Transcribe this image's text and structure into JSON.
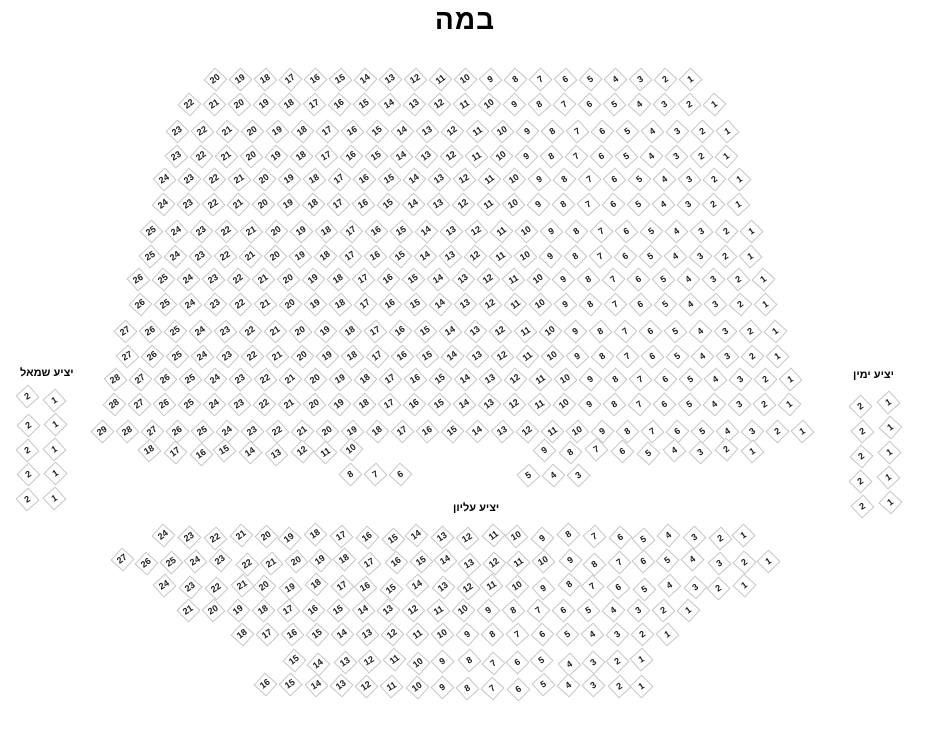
{
  "title": "במה",
  "colors": {
    "background": "#ffffff",
    "seat_fill": "#ffffff",
    "seat_border": "#c6c6c6",
    "seat_number_text": "#1c1c1c",
    "label_text": "#000000"
  },
  "sections": {
    "main": {
      "rows": [
        [
          {
            "from": 20,
            "to": 1
          }
        ],
        [
          {
            "from": 22,
            "to": 1
          }
        ],
        [
          {
            "from": 23,
            "to": 1
          }
        ],
        [
          {
            "from": 23,
            "to": 1
          }
        ],
        [
          {
            "from": 24,
            "to": 1
          }
        ],
        [
          {
            "from": 24,
            "to": 1
          }
        ],
        [
          {
            "from": 25,
            "to": 1
          }
        ],
        [
          {
            "from": 25,
            "to": 1
          }
        ],
        [
          {
            "from": 26,
            "to": 1
          }
        ],
        [
          {
            "from": 26,
            "to": 1
          }
        ],
        [
          {
            "from": 27,
            "to": 1
          }
        ],
        [
          {
            "from": 27,
            "to": 1
          }
        ],
        [
          {
            "from": 28,
            "to": 1
          }
        ],
        [
          {
            "from": 28,
            "to": 1
          }
        ],
        [
          {
            "from": 29,
            "to": 1
          }
        ],
        [
          {
            "from": 18,
            "to": 10
          },
          {
            "from": 9,
            "to": 1
          }
        ],
        [
          {
            "from": 8,
            "to": 6
          },
          {
            "from": 5,
            "to": 3
          }
        ]
      ]
    },
    "left_balcony": {
      "label": "יציע שמאל",
      "rows": [
        [
          {
            "from": 2,
            "to": 1
          }
        ],
        [
          {
            "from": 2,
            "to": 1
          }
        ],
        [
          {
            "from": 2,
            "to": 1
          }
        ],
        [
          {
            "from": 2,
            "to": 1
          }
        ],
        [
          {
            "from": 2,
            "to": 1
          }
        ]
      ]
    },
    "right_balcony": {
      "label": "יציע ימין",
      "rows": [
        [
          {
            "from": 2,
            "to": 1
          }
        ],
        [
          {
            "from": 2,
            "to": 1
          }
        ],
        [
          {
            "from": 2,
            "to": 1
          }
        ],
        [
          {
            "from": 2,
            "to": 1
          }
        ],
        [
          {
            "from": 2,
            "to": 1
          }
        ]
      ]
    },
    "upper_balcony": {
      "label": "יציע עליון",
      "rows": [
        [
          {
            "from": 24,
            "to": 1
          }
        ],
        [
          {
            "from": 27,
            "to": 1
          }
        ],
        [
          {
            "from": 24,
            "to": 1
          }
        ],
        [
          {
            "from": 21,
            "to": 1
          }
        ],
        [
          {
            "from": 18,
            "to": 1
          }
        ],
        [
          {
            "from": 15,
            "to": 1
          }
        ],
        [
          {
            "from": 16,
            "to": 1
          }
        ]
      ]
    }
  }
}
